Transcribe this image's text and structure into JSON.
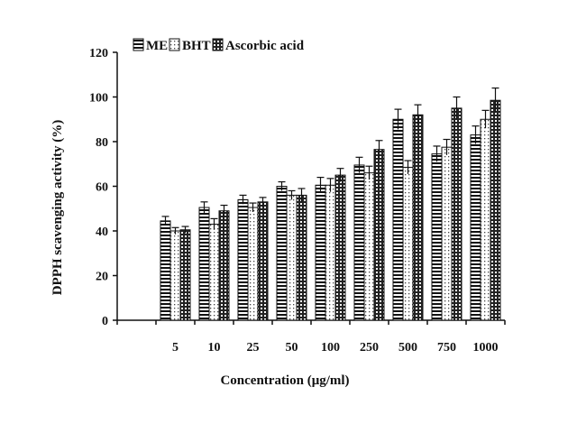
{
  "chart_data": {
    "type": "bar",
    "xlabel": "Concentration (μg/ml)",
    "ylabel": "DPPH scavenging activity (%)",
    "ylim": [
      0,
      120
    ],
    "yticks": [
      "0",
      "20",
      "40",
      "60",
      "80",
      "100",
      "120"
    ],
    "categories": [
      "5",
      "10",
      "25",
      "50",
      "100",
      "250",
      "500",
      "750",
      "1000"
    ],
    "legend_position": "top",
    "series": [
      {
        "name": "ME",
        "values": [
          44.5,
          50.5,
          54,
          60,
          60.5,
          69.5,
          90,
          74.5,
          83
        ],
        "errors": [
          2,
          2.5,
          2,
          2,
          3.5,
          3.5,
          4.5,
          3.5,
          4
        ],
        "pattern": "horizontal"
      },
      {
        "name": "BHT",
        "values": [
          40,
          43,
          50.5,
          56,
          60.5,
          66,
          68.5,
          77.5,
          90
        ],
        "errors": [
          1.5,
          2.5,
          2,
          2,
          3,
          3,
          3,
          3.5,
          4
        ],
        "pattern": "dotted"
      },
      {
        "name": "Ascorbic acid",
        "values": [
          40.5,
          49,
          53,
          56,
          65,
          76.5,
          92,
          95,
          98.5
        ],
        "errors": [
          1.5,
          2.5,
          2,
          3,
          3,
          4,
          4.5,
          5,
          5.5
        ],
        "pattern": "grid"
      }
    ]
  }
}
